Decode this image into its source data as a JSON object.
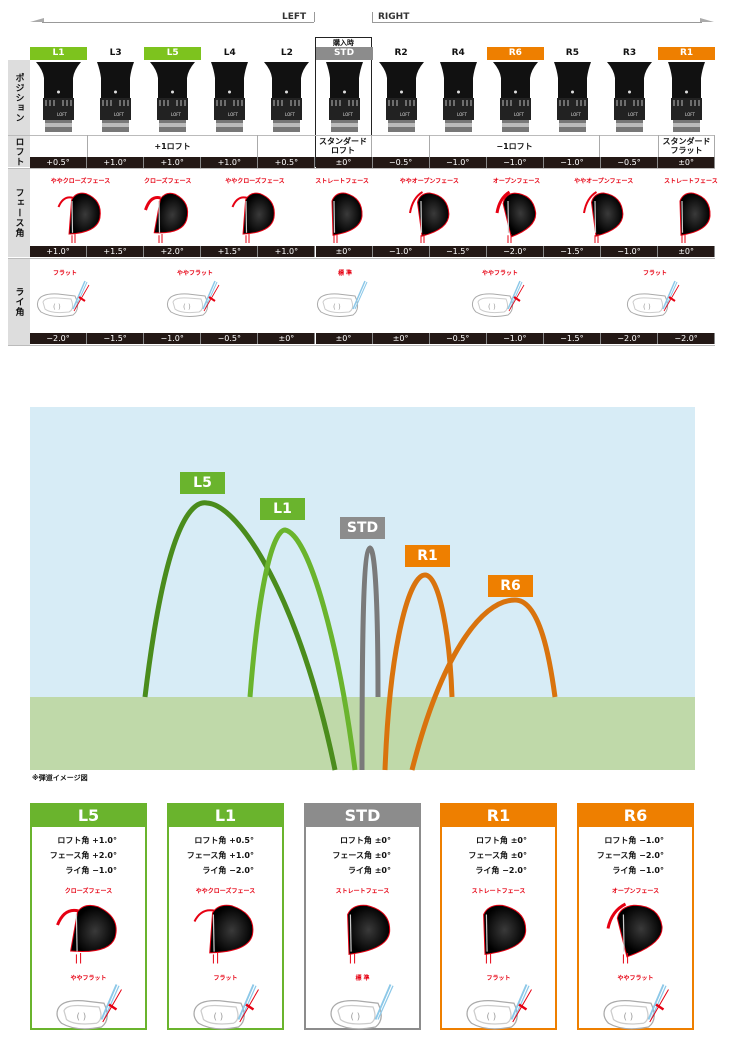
{
  "header": {
    "left_label": "LEFT",
    "right_label": "RIGHT",
    "purchase_label": "購入時"
  },
  "row_labels": {
    "position": "ポジション",
    "loft": "ロフト",
    "face": "フェース角",
    "lie": "ライ角"
  },
  "colors": {
    "left": "#7dc31e",
    "right": "#ee7f00",
    "std": "#8c8c8c",
    "red": "#e60012"
  },
  "columns": [
    {
      "label": "L1",
      "highlight": "left",
      "loft": "+0.5°",
      "face": "+1.0°",
      "lie": "−2.0°"
    },
    {
      "label": "L3",
      "highlight": "",
      "loft": "+1.0°",
      "face": "+1.5°",
      "lie": "−1.5°"
    },
    {
      "label": "L5",
      "highlight": "left",
      "loft": "+1.0°",
      "face": "+2.0°",
      "lie": "−1.0°"
    },
    {
      "label": "L4",
      "highlight": "",
      "loft": "+1.0°",
      "face": "+1.5°",
      "lie": "−0.5°"
    },
    {
      "label": "L2",
      "highlight": "",
      "loft": "+0.5°",
      "face": "+1.0°",
      "lie": "±0°"
    },
    {
      "label": "STD",
      "highlight": "std",
      "loft": "±0°",
      "face": "±0°",
      "lie": "±0°"
    },
    {
      "label": "R2",
      "highlight": "",
      "loft": "−0.5°",
      "face": "−1.0°",
      "lie": "±0°"
    },
    {
      "label": "R4",
      "highlight": "",
      "loft": "−1.0°",
      "face": "−1.5°",
      "lie": "−0.5°"
    },
    {
      "label": "R6",
      "highlight": "right",
      "loft": "−1.0°",
      "face": "−2.0°",
      "lie": "−1.0°"
    },
    {
      "label": "R5",
      "highlight": "",
      "loft": "−1.0°",
      "face": "−1.5°",
      "lie": "−1.5°"
    },
    {
      "label": "R3",
      "highlight": "",
      "loft": "−0.5°",
      "face": "−1.0°",
      "lie": "−2.0°"
    },
    {
      "label": "R1",
      "highlight": "right",
      "loft": "±0°",
      "face": "±0°",
      "lie": "−2.0°"
    }
  ],
  "loft_groups": [
    "+1ロフト",
    "スタンダード\nロフト",
    "−1ロフト",
    "スタンダード\nフラット"
  ],
  "face_labels": [
    {
      "text": "ややクローズフェース",
      "dir": -1
    },
    {
      "text": "クローズフェース",
      "dir": -2
    },
    {
      "text": "ややクローズフェース",
      "dir": -1
    },
    {
      "text": "ストレートフェース",
      "dir": 0
    },
    {
      "text": "ややオープンフェース",
      "dir": 1
    },
    {
      "text": "オープンフェース",
      "dir": 2
    },
    {
      "text": "ややオープンフェース",
      "dir": 1
    },
    {
      "text": "ストレートフェース",
      "dir": 0
    }
  ],
  "lie_labels": [
    "フラット",
    "ややフラット",
    "標 準",
    "ややフラット",
    "フラット"
  ],
  "trajectory": {
    "note": "※弾道イメージ図",
    "shots": [
      {
        "label": "L5",
        "color": "#4a8c1c",
        "tag": "#6ab42d"
      },
      {
        "label": "L1",
        "color": "#6ab42d",
        "tag": "#6ab42d"
      },
      {
        "label": "STD",
        "color": "#7a7a7a",
        "tag": "#8c8c8c"
      },
      {
        "label": "R1",
        "color": "#d9730d",
        "tag": "#ee7f00"
      },
      {
        "label": "R6",
        "color": "#d9730d",
        "tag": "#ee7f00"
      }
    ]
  },
  "cards": [
    {
      "title": "L5",
      "color": "#6ab42d",
      "loft": "ロフト角  +1.0°",
      "face": "フェース角  +2.0°",
      "lie": "ライ角  −1.0°",
      "face_label": "クローズフェース",
      "face_dir": -2,
      "lie_label": "ややフラット"
    },
    {
      "title": "L1",
      "color": "#6ab42d",
      "loft": "ロフト角  +0.5°",
      "face": "フェース角  +1.0°",
      "lie": "ライ角  −2.0°",
      "face_label": "ややクローズフェース",
      "face_dir": -1,
      "lie_label": "フラット"
    },
    {
      "title": "STD",
      "color": "#8c8c8c",
      "loft": "ロフト角  ±0°",
      "face": "フェース角  ±0°",
      "lie": "ライ角  ±0°",
      "face_label": "ストレートフェース",
      "face_dir": 0,
      "lie_label": "標 準"
    },
    {
      "title": "R1",
      "color": "#ee7f00",
      "loft": "ロフト角  ±0°",
      "face": "フェース角  ±0°",
      "lie": "ライ角  −2.0°",
      "face_label": "ストレートフェース",
      "face_dir": 0,
      "lie_label": "フラット"
    },
    {
      "title": "R6",
      "color": "#ee7f00",
      "loft": "ロフト角  −1.0°",
      "face": "フェース角  −2.0°",
      "lie": "ライ角  −1.0°",
      "face_label": "オープンフェース",
      "face_dir": 2,
      "lie_label": "ややフラット"
    }
  ]
}
